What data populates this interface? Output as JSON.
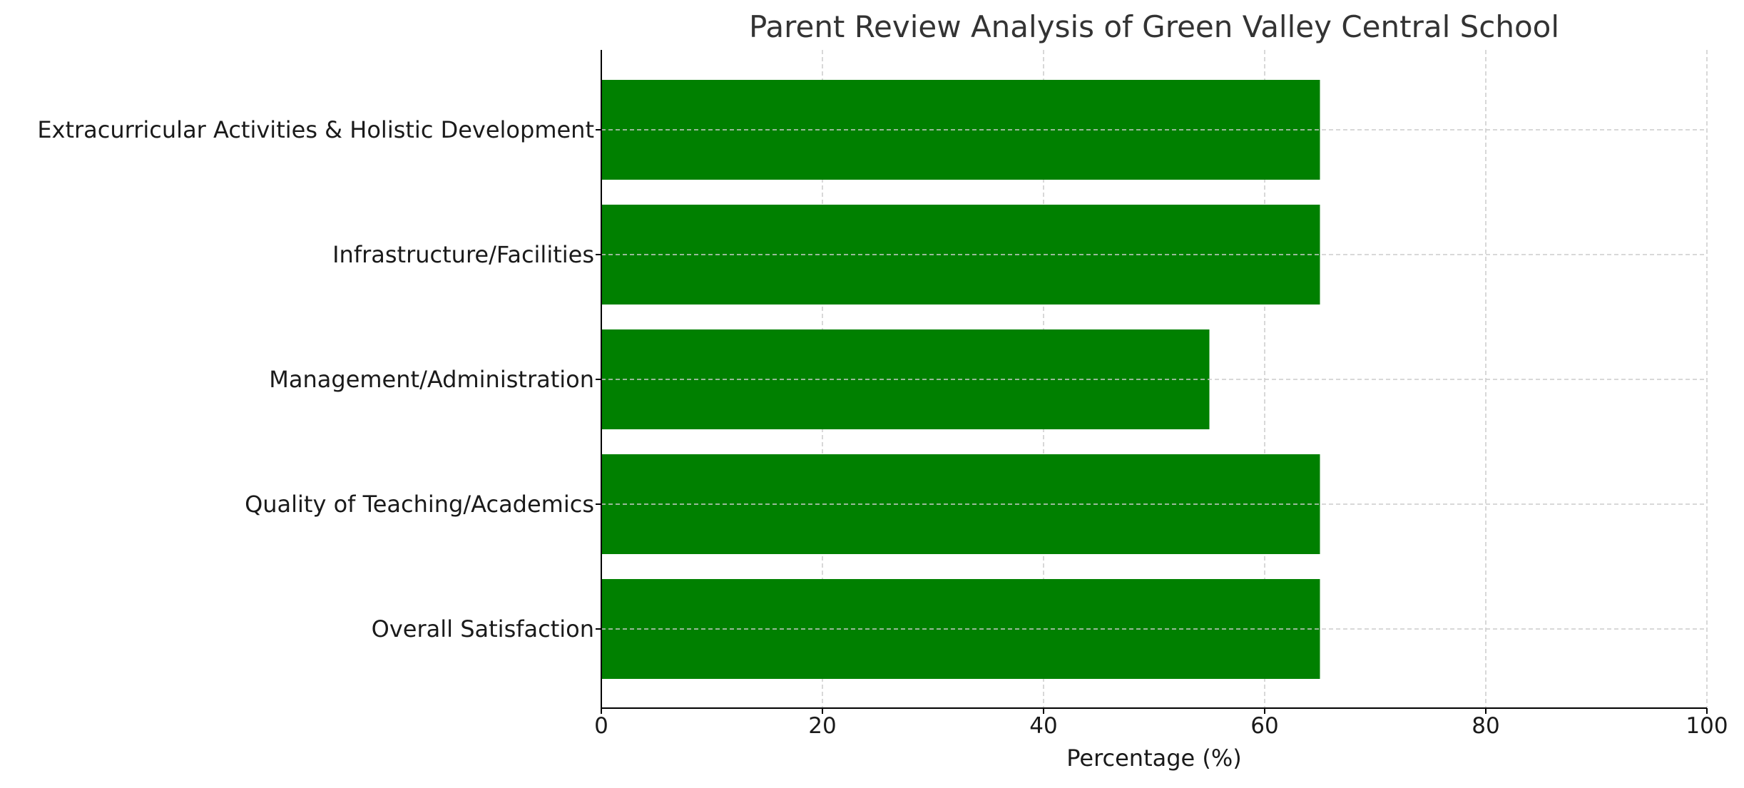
{
  "chart_data": {
    "type": "bar",
    "orientation": "horizontal",
    "title": "Parent Review Analysis of Green Valley Central School",
    "xlabel": "Percentage (%)",
    "ylabel": "",
    "categories": [
      "Overall Satisfaction",
      "Quality of Teaching/Academics",
      "Management/Administration",
      "Infrastructure/Facilities",
      "Extracurricular Activities & Holistic Development"
    ],
    "values": [
      65,
      65,
      55,
      65,
      65
    ],
    "xlim": [
      0,
      100
    ],
    "xticks": [
      0,
      20,
      40,
      60,
      80,
      100
    ],
    "xtick_labels": [
      "0",
      "20",
      "40",
      "60",
      "80",
      "100"
    ],
    "grid": true,
    "legend": "none",
    "bar_color": "#008000",
    "grid_color": "#cccccc",
    "text_color": "#1a1a1a",
    "title_color": "#333333"
  }
}
